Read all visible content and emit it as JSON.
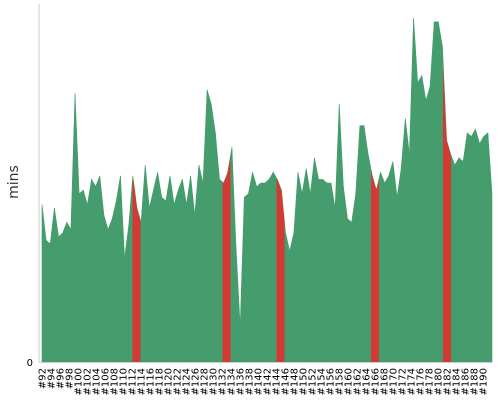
{
  "chart_data": {
    "type": "area",
    "ylabel": "mins",
    "y_tick_labels": [
      "0"
    ],
    "ylim": [
      0,
      1
    ],
    "x_tick_labels": [
      "#92",
      "#94",
      "#96",
      "#98",
      "#100",
      "#102",
      "#104",
      "#106",
      "#108",
      "#110",
      "#112",
      "#114",
      "#116",
      "#118",
      "#120",
      "#122",
      "#124",
      "#126",
      "#128",
      "#130",
      "#132",
      "#134",
      "#136",
      "#138",
      "#140",
      "#142",
      "#144",
      "#146",
      "#148",
      "#150",
      "#152",
      "#154",
      "#156",
      "#158",
      "#160",
      "#162",
      "#164",
      "#166",
      "#168",
      "#170",
      "#172",
      "#174",
      "#176",
      "#178",
      "#180",
      "#182",
      "#184",
      "#186",
      "#188",
      "#190"
    ],
    "x_start": 92,
    "x_end": 192,
    "x_step": 2,
    "values": [
      0.44,
      0.34,
      0.33,
      0.43,
      0.35,
      0.36,
      0.39,
      0.37,
      0.75,
      0.47,
      0.48,
      0.44,
      0.51,
      0.49,
      0.52,
      0.41,
      0.37,
      0.4,
      0.45,
      0.52,
      0.29,
      0.38,
      0.52,
      0.43,
      0.39,
      0.55,
      0.43,
      0.48,
      0.53,
      0.46,
      0.45,
      0.52,
      0.44,
      0.48,
      0.51,
      0.44,
      0.52,
      0.41,
      0.55,
      0.5,
      0.76,
      0.72,
      0.64,
      0.51,
      0.5,
      0.53,
      0.6,
      0.32,
      0.1,
      0.46,
      0.47,
      0.53,
      0.49,
      0.5,
      0.5,
      0.51,
      0.53,
      0.51,
      0.48,
      0.36,
      0.31,
      0.36,
      0.53,
      0.47,
      0.54,
      0.47,
      0.57,
      0.51,
      0.51,
      0.5,
      0.5,
      0.43,
      0.72,
      0.49,
      0.4,
      0.39,
      0.47,
      0.66,
      0.66,
      0.58,
      0.52,
      0.48,
      0.53,
      0.5,
      0.52,
      0.56,
      0.46,
      0.54,
      0.68,
      0.58,
      0.96,
      0.78,
      0.8,
      0.73,
      0.77,
      0.95,
      0.95,
      0.88,
      0.62,
      0.58,
      0.55,
      0.57,
      0.56,
      0.64,
      0.63,
      0.65,
      0.61,
      0.63,
      0.64,
      0.47
    ],
    "failed_builds": [
      113,
      133,
      145,
      166,
      182
    ],
    "colors": {
      "success": "#459c6c",
      "failure": "#d43a34",
      "axis": "#cccccc"
    },
    "grid": false,
    "legend": "none"
  }
}
